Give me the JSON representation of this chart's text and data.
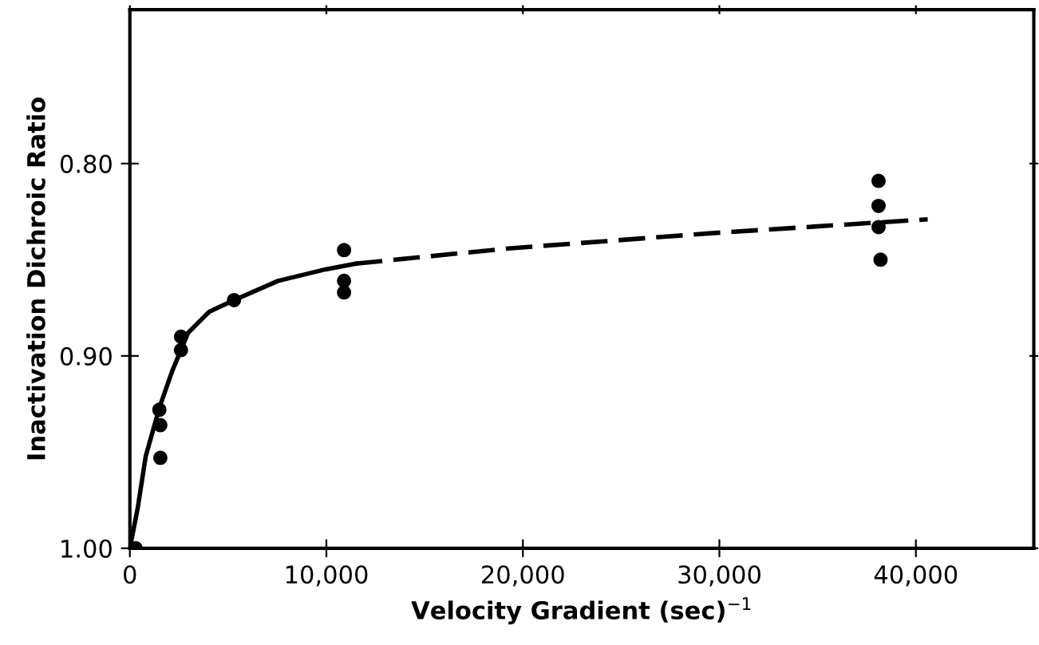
{
  "chart_data": {
    "type": "scatter",
    "xlabel": "Velocity Gradient (sec)$^{−1}$",
    "ylabel": "Inactivation Dichroic Ratio",
    "xlim": [
      0,
      46000
    ],
    "ylim": [
      1.0,
      0.72
    ],
    "xticks": [
      {
        "value": 0,
        "label": "0"
      },
      {
        "value": 10000,
        "label": "10,000"
      },
      {
        "value": 20000,
        "label": "20,000"
      },
      {
        "value": 30000,
        "label": "30,000"
      },
      {
        "value": 40000,
        "label": "40,000"
      }
    ],
    "yticks": [
      {
        "value": 0.8,
        "label": "0.80"
      },
      {
        "value": 0.9,
        "label": "0.90"
      },
      {
        "value": 1.0,
        "label": "1.00"
      }
    ],
    "grid": false,
    "legend": false,
    "series": [
      {
        "color": "#000000",
        "marker": "circle",
        "x": [
          300,
          1500,
          1550,
          1550,
          2600,
          2600,
          5300,
          10900,
          10900,
          10900,
          38100,
          38100,
          38100,
          38200
        ],
        "values": [
          1.0,
          0.928,
          0.936,
          0.953,
          0.89,
          0.897,
          0.871,
          0.845,
          0.861,
          0.867,
          0.809,
          0.822,
          0.833,
          0.85
        ]
      },
      {
        "type": "line",
        "color": "#000000",
        "marker": "none",
        "line_style": "solid",
        "x": [
          0,
          400,
          810,
          1500,
          2150,
          2960,
          4040,
          5300,
          7540,
          9960,
          11500
        ],
        "values": [
          1.0,
          0.979,
          0.952,
          0.927,
          0.908,
          0.888,
          0.877,
          0.871,
          0.861,
          0.855,
          0.852
        ]
      },
      {
        "type": "line",
        "color": "#000000",
        "marker": "none",
        "line_style": "dashed",
        "x": [
          11500,
          19400,
          29900,
          40600
        ],
        "values": [
          0.852,
          0.844,
          0.836,
          0.829
        ]
      }
    ]
  }
}
